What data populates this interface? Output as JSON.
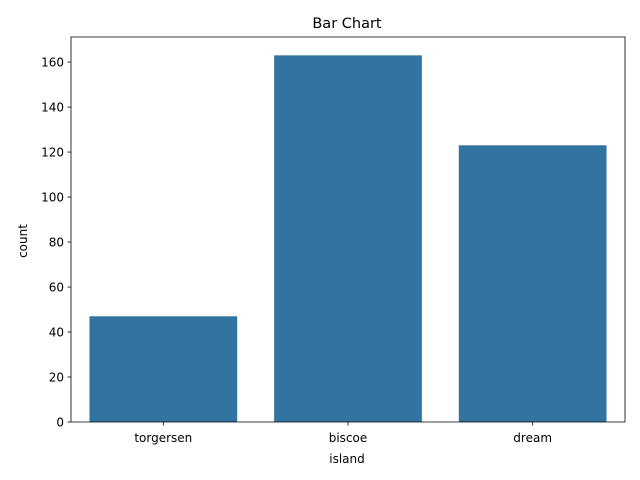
{
  "chart_data": {
    "type": "bar",
    "title": "Bar Chart",
    "xlabel": "island",
    "ylabel": "count",
    "categories": [
      "torgersen",
      "biscoe",
      "dream"
    ],
    "values": [
      47,
      163,
      123
    ],
    "ylim": [
      0,
      171.15
    ],
    "yticks": [
      0,
      20,
      40,
      60,
      80,
      100,
      120,
      140,
      160
    ],
    "grid": false,
    "bar_color": "#3274a1"
  }
}
